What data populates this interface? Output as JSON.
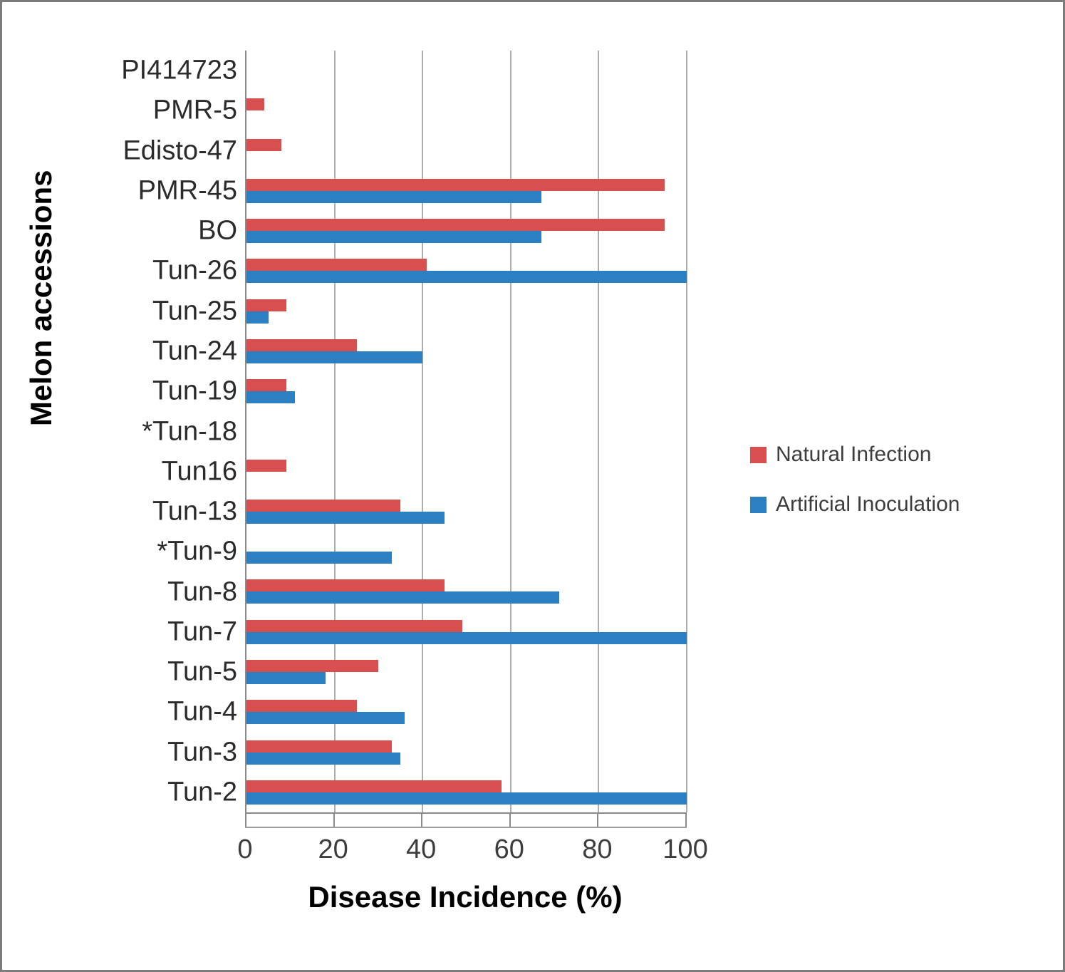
{
  "chart_data": {
    "type": "bar",
    "orientation": "horizontal",
    "categories": [
      "PI414723",
      "PMR-5",
      "Edisto-47",
      "PMR-45",
      "BO",
      "Tun-26",
      "Tun-25",
      "Tun-24",
      "Tun-19",
      "*Tun-18",
      "Tun16",
      "Tun-13",
      "*Tun-9",
      "Tun-8",
      "Tun-7",
      "Tun-5",
      "Tun-4",
      "Tun-3",
      "Tun-2"
    ],
    "series": [
      {
        "name": "Natural Infection",
        "color": "#d84f50",
        "values": [
          0,
          4,
          8,
          95,
          95,
          41,
          9,
          25,
          9,
          0,
          9,
          35,
          0,
          45,
          49,
          30,
          25,
          33,
          58
        ]
      },
      {
        "name": "Artificial Inoculation",
        "color": "#2c7fc1",
        "values": [
          0,
          0,
          0,
          67,
          67,
          100,
          5,
          40,
          11,
          0,
          0,
          45,
          33,
          71,
          100,
          18,
          36,
          35,
          100
        ]
      }
    ],
    "xlabel": "Disease Incidence (%)",
    "ylabel": "Melon accessions",
    "xlim": [
      0,
      100
    ],
    "x_ticks": [
      0,
      20,
      40,
      60,
      80,
      100
    ],
    "grid": "vertical-gridlines-on",
    "legend_position": "right-middle",
    "colors": {
      "natural_infection": "#d84f50",
      "artificial_inoculation": "#2c7fc1",
      "gridline": "#adadad",
      "axis": "#8a8a8a",
      "label_text": "#2b2b2b",
      "title_text": "#000000"
    }
  }
}
